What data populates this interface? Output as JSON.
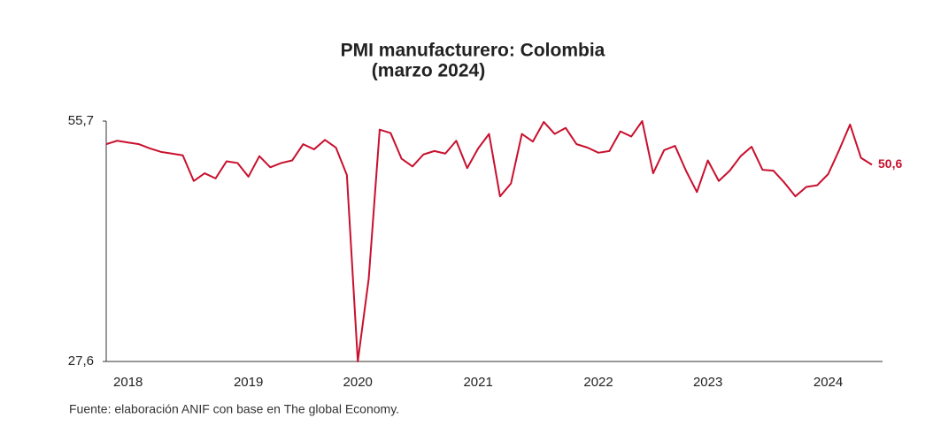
{
  "chart_data": {
    "type": "line",
    "title": "PMI manufacturero: Colombia",
    "subtitle": "(marzo 2024)",
    "source": "Fuente: elaboración ANIF con base en The global Economy.",
    "categories": [
      null,
      null,
      "2018",
      null,
      null,
      null,
      null,
      null,
      null,
      null,
      null,
      null,
      null,
      "2019",
      null,
      null,
      null,
      null,
      null,
      null,
      null,
      null,
      null,
      "2020",
      null,
      null,
      null,
      null,
      null,
      null,
      null,
      null,
      null,
      null,
      "2021",
      null,
      null,
      null,
      null,
      null,
      null,
      null,
      null,
      null,
      null,
      "2022",
      null,
      null,
      null,
      null,
      null,
      null,
      null,
      null,
      null,
      "2023",
      null,
      null,
      null,
      null,
      null,
      null,
      null,
      null,
      null,
      null,
      "2024",
      null,
      null,
      null,
      null
    ],
    "series": [
      {
        "color": "#c8102e",
        "values": [
          53.0,
          53.4,
          53.2,
          53.0,
          52.5,
          52.1,
          51.9,
          51.7,
          48.7,
          49.6,
          49.0,
          51.0,
          50.8,
          49.2,
          51.6,
          50.3,
          50.8,
          51.1,
          53.0,
          52.4,
          53.5,
          52.6,
          49.4,
          27.6,
          37.3,
          54.7,
          54.3,
          51.3,
          50.4,
          51.8,
          52.2,
          51.9,
          53.4,
          50.2,
          52.5,
          54.2,
          46.9,
          48.4,
          54.2,
          53.3,
          55.6,
          54.2,
          54.9,
          53.0,
          52.6,
          52.0,
          52.2,
          54.5,
          53.9,
          55.7,
          49.6,
          52.3,
          52.8,
          49.9,
          47.4,
          51.1,
          48.7,
          49.9,
          51.6,
          52.7,
          50.0,
          49.9,
          48.5,
          46.9,
          48.0,
          48.2,
          49.5,
          52.3,
          55.3,
          51.4,
          50.6
        ],
        "value_labels": [
          null,
          null,
          null,
          null,
          null,
          null,
          null,
          null,
          null,
          null,
          null,
          null,
          null,
          null,
          null,
          null,
          null,
          null,
          null,
          null,
          null,
          null,
          null,
          null,
          null,
          null,
          null,
          null,
          null,
          null,
          null,
          null,
          null,
          null,
          null,
          null,
          null,
          null,
          null,
          null,
          null,
          null,
          null,
          null,
          null,
          null,
          null,
          null,
          null,
          null,
          null,
          null,
          null,
          null,
          null,
          null,
          null,
          null,
          null,
          null,
          null,
          null,
          null,
          null,
          null,
          null,
          null,
          null,
          null,
          null,
          "50,6"
        ]
      }
    ],
    "ylim": [
      27.6,
      55.7
    ],
    "yticks": [
      {
        "value": 27.6,
        "label": "27,6"
      },
      {
        "value": 55.7,
        "label": "55,7"
      }
    ],
    "grid": false
  }
}
